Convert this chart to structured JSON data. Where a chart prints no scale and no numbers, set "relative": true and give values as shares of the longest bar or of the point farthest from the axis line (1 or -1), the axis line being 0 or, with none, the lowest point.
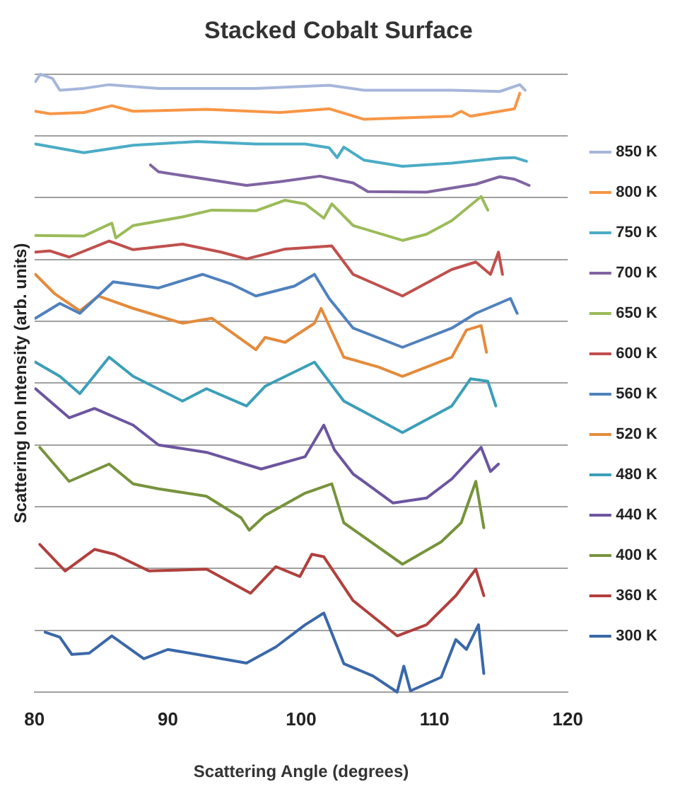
{
  "chart_data": {
    "type": "line",
    "title": "Stacked Cobalt Surface",
    "xlabel": "Scattering Angle (degrees)",
    "ylabel": "Scattering Ion Intensity (arb. units)",
    "relative": true,
    "xlim": [
      80,
      120
    ],
    "xticks": [
      80,
      90,
      100,
      110,
      120
    ],
    "grid": "y",
    "legend": "right",
    "marker": "none",
    "line_style": "solid",
    "series": [
      {
        "name": "850 K",
        "color": "#a6b6db",
        "x": [
          80.07,
          80.44,
          81.35,
          81.9,
          83.7,
          85.6,
          89.3,
          96.6,
          102.1,
          104.7,
          111.3,
          114.9,
          116.4,
          116.8
        ],
        "values": [
          0.988,
          1.0,
          0.993,
          0.974,
          0.977,
          0.983,
          0.977,
          0.977,
          0.982,
          0.974,
          0.974,
          0.972,
          0.983,
          0.974
        ]
      },
      {
        "name": "800 K",
        "color": "#f79646",
        "x": [
          80.07,
          81.17,
          83.7,
          85.8,
          87.4,
          92.9,
          98.4,
          102.1,
          104.7,
          111.3,
          112.0,
          112.7,
          116.0,
          116.4
        ],
        "values": [
          0.94,
          0.936,
          0.938,
          0.949,
          0.94,
          0.943,
          0.938,
          0.944,
          0.927,
          0.932,
          0.94,
          0.932,
          0.944,
          0.969
        ]
      },
      {
        "name": "750 K",
        "color": "#4bacc6",
        "x": [
          80.07,
          83.7,
          87.4,
          92.2,
          96.6,
          100.3,
          102.1,
          102.7,
          103.2,
          104.7,
          107.6,
          111.3,
          114.9,
          116.0,
          116.9
        ],
        "values": [
          0.887,
          0.873,
          0.885,
          0.891,
          0.887,
          0.887,
          0.881,
          0.865,
          0.882,
          0.861,
          0.851,
          0.856,
          0.864,
          0.865,
          0.859
        ]
      },
      {
        "name": "700 K",
        "color": "#8064a2",
        "x": [
          88.7,
          89.3,
          92.9,
          95.9,
          98.4,
          101.4,
          103.9,
          105.0,
          109.4,
          113.1,
          114.9,
          116.0,
          117.1
        ],
        "values": [
          0.853,
          0.842,
          0.83,
          0.82,
          0.826,
          0.835,
          0.824,
          0.81,
          0.809,
          0.822,
          0.834,
          0.83,
          0.82
        ]
      },
      {
        "name": "650 K",
        "color": "#9bbb59",
        "x": [
          80.07,
          83.7,
          85.8,
          86.1,
          87.4,
          91.1,
          93.3,
          96.6,
          98.8,
          100.3,
          101.7,
          102.3,
          103.9,
          107.6,
          109.4,
          111.3,
          113.5,
          114.0
        ],
        "values": [
          0.739,
          0.738,
          0.759,
          0.735,
          0.755,
          0.769,
          0.78,
          0.779,
          0.796,
          0.79,
          0.767,
          0.79,
          0.755,
          0.731,
          0.741,
          0.763,
          0.802,
          0.78
        ]
      },
      {
        "name": "600 K",
        "color": "#c0504d",
        "x": [
          80.07,
          81.17,
          82.6,
          85.6,
          87.4,
          91.1,
          94.0,
          95.9,
          98.8,
          102.3,
          103.9,
          107.6,
          111.3,
          113.1,
          114.2,
          114.8,
          115.1
        ],
        "values": [
          0.712,
          0.714,
          0.704,
          0.73,
          0.716,
          0.725,
          0.712,
          0.701,
          0.717,
          0.722,
          0.676,
          0.641,
          0.684,
          0.696,
          0.676,
          0.712,
          0.676
        ]
      },
      {
        "name": "560 K",
        "color": "#4f81bd",
        "x": [
          80.07,
          81.9,
          83.4,
          85.9,
          89.3,
          92.6,
          94.8,
          96.6,
          99.5,
          101.0,
          102.1,
          103.9,
          107.6,
          111.3,
          113.1,
          115.7,
          116.2
        ],
        "values": [
          0.605,
          0.629,
          0.613,
          0.664,
          0.654,
          0.676,
          0.66,
          0.641,
          0.657,
          0.676,
          0.637,
          0.589,
          0.558,
          0.589,
          0.613,
          0.637,
          0.613
        ]
      },
      {
        "name": "520 K",
        "color": "#e38b3c",
        "x": [
          80.07,
          81.5,
          83.4,
          84.8,
          87.4,
          91.1,
          93.3,
          96.6,
          97.3,
          98.8,
          101.0,
          101.5,
          103.2,
          105.8,
          107.6,
          111.3,
          112.4,
          113.5,
          113.9
        ],
        "values": [
          0.676,
          0.645,
          0.617,
          0.641,
          0.621,
          0.597,
          0.605,
          0.554,
          0.574,
          0.566,
          0.597,
          0.621,
          0.542,
          0.526,
          0.511,
          0.542,
          0.586,
          0.593,
          0.55
        ]
      },
      {
        "name": "480 K",
        "color": "#3c9fb8",
        "x": [
          80.07,
          81.9,
          83.4,
          85.6,
          87.4,
          91.1,
          92.9,
          95.9,
          97.3,
          101.0,
          103.2,
          107.6,
          111.3,
          112.7,
          114.0,
          114.6
        ],
        "values": [
          0.534,
          0.511,
          0.483,
          0.542,
          0.511,
          0.471,
          0.491,
          0.463,
          0.495,
          0.534,
          0.471,
          0.42,
          0.463,
          0.507,
          0.503,
          0.463
        ]
      },
      {
        "name": "440 K",
        "color": "#6c55a0",
        "x": [
          80.07,
          82.6,
          84.5,
          87.4,
          89.3,
          92.9,
          97.0,
          100.3,
          101.7,
          102.5,
          103.9,
          106.9,
          109.4,
          111.3,
          113.5,
          114.2,
          114.8
        ],
        "values": [
          0.491,
          0.444,
          0.459,
          0.432,
          0.4,
          0.388,
          0.361,
          0.381,
          0.432,
          0.392,
          0.353,
          0.306,
          0.314,
          0.345,
          0.396,
          0.357,
          0.369
        ]
      },
      {
        "name": "400 K",
        "color": "#77933c",
        "x": [
          80.4,
          82.6,
          85.6,
          87.4,
          89.3,
          92.9,
          95.5,
          96.1,
          97.3,
          100.3,
          102.3,
          103.2,
          107.6,
          110.5,
          112.0,
          113.1,
          113.7
        ],
        "values": [
          0.396,
          0.341,
          0.369,
          0.337,
          0.329,
          0.317,
          0.282,
          0.262,
          0.286,
          0.322,
          0.337,
          0.274,
          0.207,
          0.243,
          0.274,
          0.341,
          0.266
        ]
      },
      {
        "name": "360 K",
        "color": "#b0403d",
        "x": [
          80.4,
          82.3,
          84.5,
          86.0,
          88.6,
          92.9,
          96.2,
          98.1,
          99.9,
          100.8,
          101.7,
          103.9,
          107.2,
          109.4,
          111.6,
          113.1,
          113.7
        ],
        "values": [
          0.239,
          0.196,
          0.231,
          0.223,
          0.196,
          0.199,
          0.16,
          0.203,
          0.187,
          0.223,
          0.219,
          0.148,
          0.091,
          0.109,
          0.156,
          0.199,
          0.156
        ]
      },
      {
        "name": "300 K",
        "color": "#3a68a8",
        "x": [
          80.8,
          81.9,
          82.8,
          84.1,
          85.8,
          88.2,
          90.0,
          92.2,
          95.9,
          98.1,
          100.3,
          101.7,
          103.2,
          105.4,
          107.2,
          107.7,
          108.2,
          110.5,
          111.6,
          112.4,
          113.3,
          113.7
        ],
        "values": [
          0.097,
          0.089,
          0.061,
          0.063,
          0.091,
          0.054,
          0.069,
          0.061,
          0.047,
          0.073,
          0.109,
          0.128,
          0.046,
          0.026,
          0,
          0.042,
          0.002,
          0.024,
          0.085,
          0.069,
          0.109,
          0.03
        ]
      }
    ]
  }
}
